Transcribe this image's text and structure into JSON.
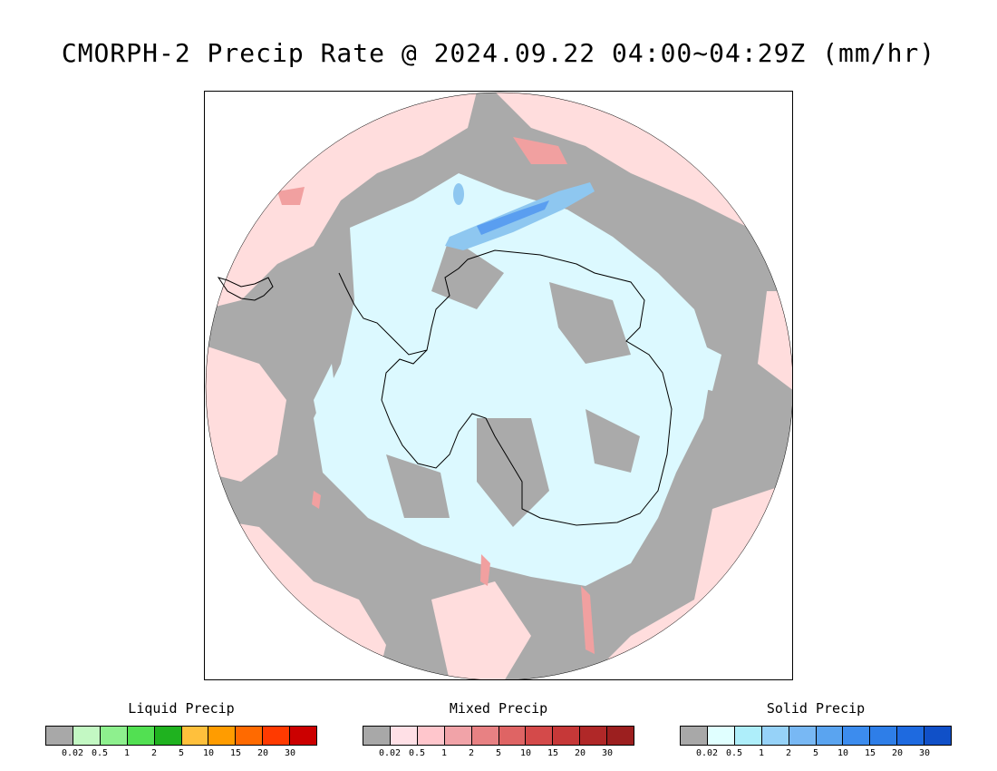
{
  "title": "CMORPH-2 Precip Rate @ 2024.09.22 04:00~04:29Z (mm/hr)",
  "map": {
    "projection": "south-polar-stereographic",
    "colors": {
      "background_gray": "#aaaaaa",
      "mixed_light": "#ffdddd",
      "mixed_pink": "#f1a0a0",
      "solid_light": "#dcf9ff",
      "solid_blue": "#8ec7f0",
      "solid_mid": "#5a9ef0",
      "coastline": "#000000"
    }
  },
  "legends": [
    {
      "title": "Liquid Precip",
      "colors": [
        "#a8a8a8",
        "#c3f8c3",
        "#8ef08e",
        "#52e052",
        "#1fb21f",
        "#ffc03c",
        "#ff9c00",
        "#ff6a00",
        "#ff3a00",
        "#cc0000"
      ],
      "labels": [
        "0.02",
        "0.5",
        "1",
        "2",
        "5",
        "10",
        "15",
        "20",
        "30"
      ]
    },
    {
      "title": "Mixed Precip",
      "colors": [
        "#a8a8a8",
        "#ffe0e6",
        "#ffc6cc",
        "#f1a3a8",
        "#e88183",
        "#df6464",
        "#d44a4a",
        "#c63838",
        "#b02828",
        "#9c1f1f"
      ],
      "labels": [
        "0.02",
        "0.5",
        "1",
        "2",
        "5",
        "10",
        "15",
        "20",
        "30"
      ]
    },
    {
      "title": "Solid Precip",
      "colors": [
        "#a8a8a8",
        "#e0ffff",
        "#aeeefa",
        "#96d2f8",
        "#78b8f4",
        "#5aa4f0",
        "#3c8cee",
        "#2e7ee8",
        "#1e6ae0",
        "#1050c8"
      ],
      "labels": [
        "0.02",
        "0.5",
        "1",
        "2",
        "5",
        "10",
        "15",
        "20",
        "30"
      ]
    }
  ]
}
